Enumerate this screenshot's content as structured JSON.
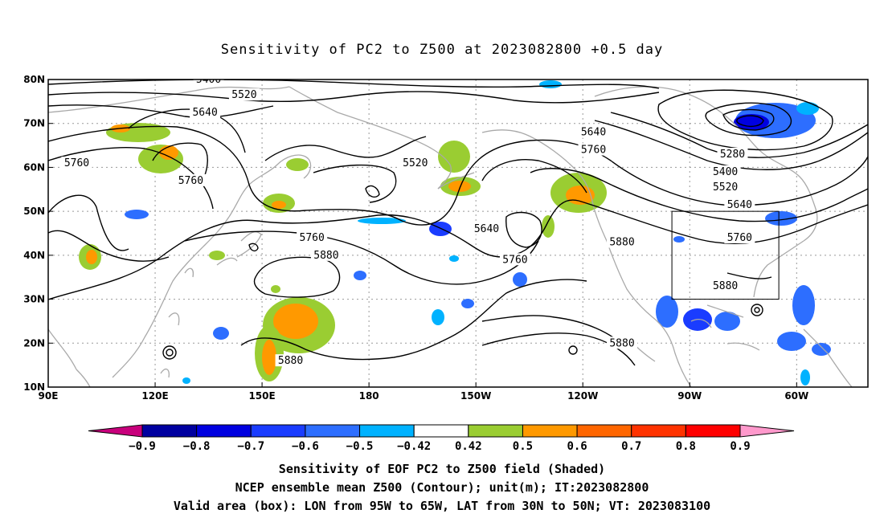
{
  "title": "Sensitivity of PC2 to Z500 at 2023082800 +0.5 day",
  "map": {
    "lat_labels": [
      "80N",
      "70N",
      "60N",
      "50N",
      "40N",
      "30N",
      "20N",
      "10N"
    ],
    "lon_labels": [
      "90E",
      "120E",
      "150E",
      "180",
      "150W",
      "120W",
      "90W",
      "60W"
    ],
    "lat_range": [
      10,
      80
    ],
    "lon_range": [
      90,
      320
    ],
    "valid_box": {
      "lon": [
        "95W",
        "65W"
      ],
      "lat": [
        "30N",
        "50N"
      ]
    }
  },
  "contour_labels": [
    {
      "text": "5400",
      "lon": 135,
      "lat": 80
    },
    {
      "text": "5520",
      "lon": 145,
      "lat": 76.5
    },
    {
      "text": "5640",
      "lon": 134,
      "lat": 72.5
    },
    {
      "text": "5760",
      "lon": 98,
      "lat": 61
    },
    {
      "text": "5760",
      "lon": 130,
      "lat": 57
    },
    {
      "text": "5520",
      "lon": 193,
      "lat": 61
    },
    {
      "text": "5640",
      "lon": 243,
      "lat": 68
    },
    {
      "text": "5760",
      "lon": 243,
      "lat": 64
    },
    {
      "text": "5280",
      "lon": 282,
      "lat": 63
    },
    {
      "text": "5400",
      "lon": 280,
      "lat": 59
    },
    {
      "text": "5520",
      "lon": 280,
      "lat": 55.5
    },
    {
      "text": "5640",
      "lon": 284,
      "lat": 51.5
    },
    {
      "text": "5760",
      "lon": 284,
      "lat": 44
    },
    {
      "text": "5880",
      "lon": 280,
      "lat": 33
    },
    {
      "text": "5760",
      "lon": 164,
      "lat": 44
    },
    {
      "text": "5880",
      "lon": 168,
      "lat": 40
    },
    {
      "text": "5640",
      "lon": 213,
      "lat": 46
    },
    {
      "text": "5760",
      "lon": 221,
      "lat": 39
    },
    {
      "text": "5880",
      "lon": 251,
      "lat": 43
    },
    {
      "text": "5880",
      "lon": 158,
      "lat": 16
    },
    {
      "text": "5880",
      "lon": 251,
      "lat": 20
    }
  ],
  "colorbar": {
    "labels": [
      "-0.9",
      "-0.8",
      "-0.7",
      "-0.6",
      "-0.5",
      "-0.42",
      "0.42",
      "0.5",
      "0.6",
      "0.7",
      "0.8",
      "0.9"
    ],
    "colors": [
      "#0000a0",
      "#0000e0",
      "#1a3cff",
      "#2d6eff",
      "#00b2ff",
      "#ffffff",
      "#9acd32",
      "#ff9900",
      "#ff6600",
      "#ff3300",
      "#ff0000"
    ],
    "low_color": "#c8007c",
    "high_color": "#ff99cc"
  },
  "captions": [
    "Sensitivity of EOF PC2 to Z500 field (Shaded)",
    "NCEP ensemble mean Z500 (Contour); unit(m); IT:2023082800",
    "Valid area (box): LON from 95W to 65W, LAT from 30N to 50N; VT: 2023083100"
  ]
}
